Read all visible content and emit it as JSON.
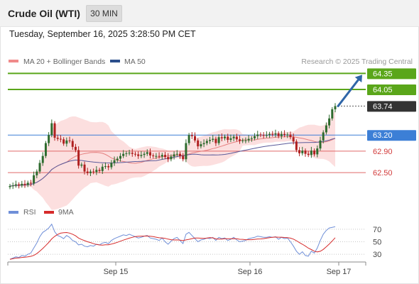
{
  "header": {
    "title": "Crude Oil (WTI)",
    "timeframe": "30 MIN",
    "datetime": "Tuesday, September 16, 2025 3:28:50 PM CET"
  },
  "legend": {
    "ma20_bb": "MA 20 + Bollinger Bands",
    "ma50": "MA 50",
    "credit": "Research © 2025 Trading Central",
    "rsi": "RSI",
    "rsi_ma": "9MA"
  },
  "colors": {
    "resistance": "#5aa61a",
    "pivot": "#3c7fd6",
    "support": "#e06a6a",
    "last": "#333333",
    "bollinger_fill": "#fcd9d9",
    "ma20": "#e58080",
    "ma50": "#5a5a9a",
    "rsi": "#6f8fd8",
    "rsi_ma": "#d62b2b",
    "arrow": "#2f66a8",
    "candle_up": "#2e6b2e",
    "candle_down": "#b02020"
  },
  "chart_data": [
    {
      "type": "candlestick",
      "ylim": [
        62.25,
        64.5
      ],
      "x_ticks": [
        "Sep 15",
        "Sep 16",
        "Sep 17"
      ],
      "levels": [
        {
          "value": 64.35,
          "label": "64.35",
          "kind": "resistance"
        },
        {
          "value": 64.05,
          "label": "64.05",
          "kind": "resistance"
        },
        {
          "value": 63.74,
          "label": "63.74",
          "kind": "last"
        },
        {
          "value": 63.2,
          "label": "63.20",
          "kind": "pivot"
        },
        {
          "value": 62.9,
          "label": "62.90",
          "kind": "support"
        },
        {
          "value": 62.5,
          "label": "62.50",
          "kind": "support"
        }
      ],
      "closes": [
        62.25,
        62.26,
        62.28,
        62.26,
        62.29,
        62.27,
        62.31,
        62.3,
        62.45,
        62.52,
        62.68,
        62.81,
        63.05,
        63.2,
        63.42,
        63.15,
        63.13,
        63.12,
        63.04,
        63.1,
        63.09,
        62.98,
        62.92,
        62.63,
        62.65,
        62.52,
        62.49,
        62.52,
        62.51,
        62.55,
        62.53,
        62.61,
        62.62,
        62.6,
        62.68,
        62.73,
        62.76,
        62.81,
        62.85,
        62.86,
        62.87,
        62.85,
        62.84,
        62.81,
        62.83,
        62.85,
        62.88,
        62.82,
        62.81,
        62.81,
        62.8,
        62.83,
        62.79,
        62.75,
        62.8,
        62.84,
        62.85,
        62.81,
        62.75,
        63.05,
        63.2,
        63.18,
        63.1,
        62.99,
        63.03,
        63.05,
        63.09,
        63.11,
        63.13,
        63.05,
        63.16,
        63.14,
        63.17,
        63.11,
        63.14,
        63.17,
        63.12,
        63.09,
        63.1,
        63.1,
        63.13,
        63.14,
        63.18,
        63.21,
        63.2,
        63.19,
        63.2,
        63.22,
        63.21,
        63.23,
        63.18,
        63.22,
        63.2,
        63.21,
        63.16,
        63.08,
        62.92,
        62.86,
        62.91,
        62.85,
        62.83,
        62.91,
        62.84,
        62.95,
        63.1,
        63.25,
        63.38,
        63.51,
        63.68,
        63.74
      ],
      "rsi": {
        "ylim": [
          20,
          80
        ],
        "ticks": [
          70,
          50,
          30
        ],
        "values": [
          22,
          24,
          26,
          25,
          28,
          27,
          30,
          32,
          40,
          48,
          58,
          65,
          68,
          72,
          78,
          66,
          60,
          58,
          55,
          60,
          57,
          52,
          50,
          45,
          46,
          43,
          42,
          44,
          43,
          46,
          45,
          48,
          49,
          47,
          52,
          55,
          57,
          59,
          61,
          60,
          62,
          60,
          58,
          56,
          57,
          59,
          60,
          56,
          55,
          54,
          52,
          56,
          50,
          46,
          51,
          55,
          57,
          52,
          47,
          62,
          65,
          60,
          55,
          50,
          53,
          54,
          56,
          55,
          57,
          52,
          57,
          55,
          56,
          52,
          54,
          57,
          53,
          50,
          51,
          52,
          55,
          56,
          57,
          59,
          58,
          57,
          57,
          58,
          57,
          58,
          54,
          57,
          55,
          56,
          50,
          43,
          35,
          30,
          34,
          28,
          27,
          35,
          32,
          40,
          52,
          62,
          68,
          72,
          73,
          74
        ]
      }
    }
  ]
}
